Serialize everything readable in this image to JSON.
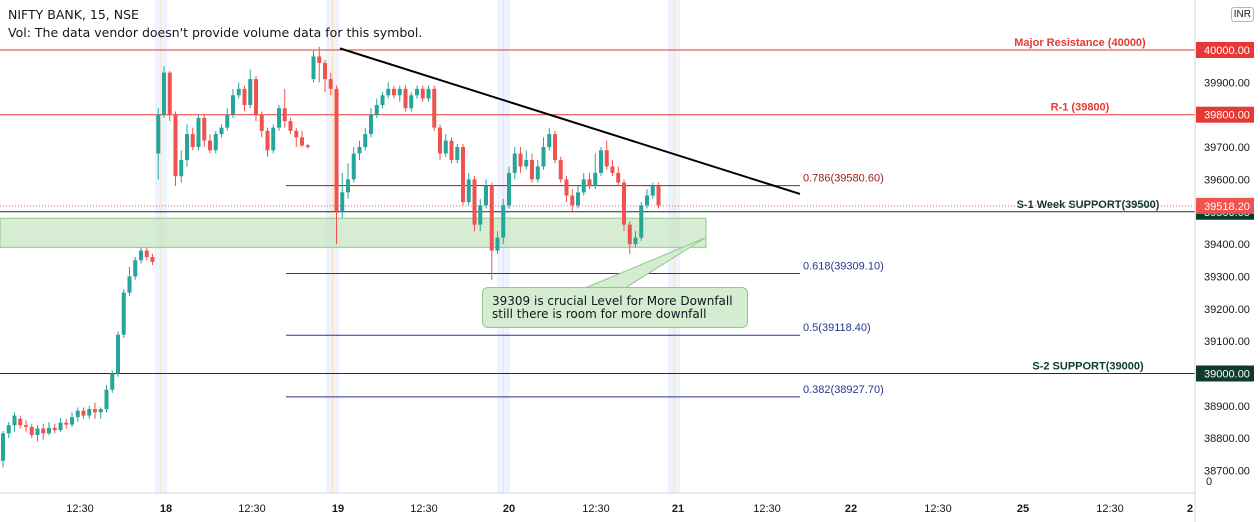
{
  "header": {
    "symbol_line": "NIFTY BANK, 15, NSE",
    "volume_line": "Vol: The data vendor doesn't provide volume data for this symbol."
  },
  "currency": "INR",
  "annotation": {
    "line1": "39309 is crucial Level for More Downfall",
    "line2": "still there is room for more downfall"
  },
  "colors": {
    "up": "#26a69a",
    "down": "#ef5350",
    "resistance": "#e53935",
    "support": "#0d3b2e",
    "fib_red": "#9b1c1c",
    "fib_blue": "#283593",
    "trend": "#000000",
    "zone_fill": "#c8e6c4",
    "last_price": "#ef5350"
  },
  "chart_data": {
    "type": "candlestick",
    "ylim": [
      38700,
      40150
    ],
    "y_ticks": [
      "40000.00",
      "39900.00",
      "39800.00",
      "39700.00",
      "39600.00",
      "39500.00",
      "39400.00",
      "39300.00",
      "39200.00",
      "39100.00",
      "39000.00",
      "38900.00",
      "38800.00",
      "38700.00"
    ],
    "x_ticks": [
      {
        "label": "12:30",
        "x": 80,
        "bold": false
      },
      {
        "label": "18",
        "x": 166,
        "bold": true
      },
      {
        "label": "12:30",
        "x": 252,
        "bold": false
      },
      {
        "label": "19",
        "x": 338,
        "bold": true
      },
      {
        "label": "12:30",
        "x": 424,
        "bold": false
      },
      {
        "label": "20",
        "x": 509,
        "bold": true
      },
      {
        "label": "12:30",
        "x": 596,
        "bold": false
      },
      {
        "label": "21",
        "x": 678,
        "bold": true
      },
      {
        "label": "12:30",
        "x": 767,
        "bold": false
      },
      {
        "label": "22",
        "x": 851,
        "bold": true
      },
      {
        "label": "12:30",
        "x": 938,
        "bold": false
      },
      {
        "label": "25",
        "x": 1023,
        "bold": true
      },
      {
        "label": "12:30",
        "x": 1110,
        "bold": false
      },
      {
        "label": "2",
        "x": 1190,
        "bold": true
      }
    ],
    "levels": [
      {
        "label": "Major Resistance (40000)",
        "value": 40000,
        "tag": "40000.00",
        "kind": "resistance"
      },
      {
        "label": "R-1 (39800)",
        "value": 39800,
        "tag": "39800.00",
        "kind": "resistance"
      },
      {
        "label": "S-1 Week SUPPORT(39500)",
        "value": 39500,
        "tag": "39500.00",
        "kind": "support"
      },
      {
        "label": "S-2 SUPPORT(39000)",
        "value": 39000,
        "tag": "39000.00",
        "kind": "support"
      }
    ],
    "fibonacci": [
      {
        "label": "0.786(39580.60)",
        "value": 39580.6,
        "color": "fib_red"
      },
      {
        "label": "0.618(39309.10)",
        "value": 39309.1,
        "color": "fib_blue"
      },
      {
        "label": "0.5(39118.40)",
        "value": 39118.4,
        "color": "fib_blue"
      },
      {
        "label": "0.382(38927.70)",
        "value": 38927.7,
        "color": "fib_blue"
      }
    ],
    "last_price": {
      "value": 39518.2,
      "tag": "39518.20"
    },
    "support_zone": {
      "high": 39480,
      "low": 39390
    },
    "trendline": {
      "start": 40005,
      "end": 39555
    },
    "axis_bottom_label": "0",
    "candles": [
      [
        38730,
        38815,
        38710,
        38822
      ],
      [
        38815,
        38840,
        38800,
        38850
      ],
      [
        38840,
        38870,
        38820,
        38880
      ],
      [
        38860,
        38840,
        38830,
        38870
      ],
      [
        38840,
        38835,
        38820,
        38855
      ],
      [
        38835,
        38810,
        38800,
        38845
      ],
      [
        38810,
        38830,
        38790,
        38840
      ],
      [
        38830,
        38815,
        38795,
        38845
      ],
      [
        38815,
        38832,
        38810,
        38850
      ],
      [
        38832,
        38825,
        38815,
        38845
      ],
      [
        38825,
        38848,
        38820,
        38862
      ],
      [
        38848,
        38842,
        38830,
        38860
      ],
      [
        38842,
        38865,
        38835,
        38880
      ],
      [
        38865,
        38885,
        38850,
        38895
      ],
      [
        38885,
        38870,
        38860,
        38895
      ],
      [
        38870,
        38890,
        38860,
        38900
      ],
      [
        38890,
        38880,
        38860,
        38910
      ],
      [
        38880,
        38890,
        38860,
        38895
      ],
      [
        38890,
        38950,
        38880,
        38965
      ],
      [
        38950,
        39000,
        38940,
        39010
      ],
      [
        39000,
        39120,
        38990,
        39130
      ],
      [
        39120,
        39250,
        39110,
        39260
      ],
      [
        39250,
        39300,
        39240,
        39330
      ],
      [
        39300,
        39350,
        39290,
        39360
      ],
      [
        39350,
        39380,
        39340,
        39390
      ],
      [
        39380,
        39360,
        39350,
        39390
      ],
      [
        39360,
        39345,
        39335,
        39370
      ],
      [
        39680,
        39800,
        39600,
        39820
      ],
      [
        39800,
        39930,
        39790,
        39950
      ],
      [
        39930,
        39800,
        39780,
        39935
      ],
      [
        39800,
        39610,
        39580,
        39810
      ],
      [
        39610,
        39660,
        39590,
        39690
      ],
      [
        39660,
        39740,
        39640,
        39770
      ],
      [
        39740,
        39700,
        39690,
        39760
      ],
      [
        39700,
        39790,
        39690,
        39800
      ],
      [
        39790,
        39720,
        39700,
        39800
      ],
      [
        39720,
        39690,
        39680,
        39740
      ],
      [
        39690,
        39740,
        39680,
        39750
      ],
      [
        39740,
        39760,
        39730,
        39770
      ],
      [
        39760,
        39800,
        39750,
        39820
      ],
      [
        39800,
        39860,
        39790,
        39880
      ],
      [
        39860,
        39880,
        39850,
        39900
      ],
      [
        39880,
        39830,
        39810,
        39890
      ],
      [
        39830,
        39910,
        39820,
        39940
      ],
      [
        39910,
        39800,
        39780,
        39920
      ],
      [
        39800,
        39750,
        39730,
        39810
      ],
      [
        39750,
        39690,
        39670,
        39760
      ],
      [
        39690,
        39760,
        39680,
        39770
      ],
      [
        39760,
        39820,
        39750,
        39830
      ],
      [
        39820,
        39780,
        39760,
        39880
      ],
      [
        39780,
        39750,
        39740,
        39790
      ],
      [
        39750,
        39730,
        39700,
        39760
      ],
      [
        39730,
        39705,
        39700,
        39750
      ],
      [
        39705,
        39700,
        39695,
        39710
      ],
      [
        39910,
        39980,
        39900,
        40000
      ],
      [
        39980,
        39960,
        39900,
        40010
      ],
      [
        39960,
        39910,
        39870,
        39970
      ],
      [
        39910,
        39880,
        39860,
        39930
      ],
      [
        39880,
        39500,
        39400,
        39890
      ],
      [
        39500,
        39560,
        39480,
        39620
      ],
      [
        39560,
        39600,
        39540,
        39650
      ],
      [
        39600,
        39680,
        39590,
        39700
      ],
      [
        39680,
        39700,
        39660,
        39720
      ],
      [
        39700,
        39740,
        39690,
        39760
      ],
      [
        39740,
        39800,
        39730,
        39820
      ],
      [
        39800,
        39830,
        39790,
        39850
      ],
      [
        39830,
        39860,
        39820,
        39870
      ],
      [
        39860,
        39880,
        39850,
        39900
      ],
      [
        39880,
        39860,
        39850,
        39890
      ],
      [
        39860,
        39880,
        39840,
        39890
      ],
      [
        39880,
        39820,
        39810,
        39890
      ],
      [
        39820,
        39860,
        39810,
        39870
      ],
      [
        39860,
        39880,
        39850,
        39890
      ],
      [
        39880,
        39850,
        39840,
        39890
      ],
      [
        39850,
        39880,
        39840,
        39890
      ],
      [
        39880,
        39760,
        39750,
        39890
      ],
      [
        39760,
        39680,
        39660,
        39770
      ],
      [
        39680,
        39720,
        39670,
        39740
      ],
      [
        39720,
        39660,
        39650,
        39730
      ],
      [
        39660,
        39700,
        39650,
        39710
      ],
      [
        39700,
        39530,
        39520,
        39710
      ],
      [
        39530,
        39600,
        39520,
        39620
      ],
      [
        39600,
        39460,
        39440,
        39610
      ],
      [
        39460,
        39520,
        39440,
        39540
      ],
      [
        39520,
        39580,
        39510,
        39600
      ],
      [
        39580,
        39380,
        39290,
        39590
      ],
      [
        39380,
        39420,
        39370,
        39440
      ],
      [
        39420,
        39520,
        39400,
        39540
      ],
      [
        39520,
        39620,
        39510,
        39640
      ],
      [
        39620,
        39680,
        39600,
        39700
      ],
      [
        39680,
        39640,
        39620,
        39700
      ],
      [
        39640,
        39660,
        39630,
        39690
      ],
      [
        39660,
        39600,
        39590,
        39680
      ],
      [
        39600,
        39640,
        39590,
        39660
      ],
      [
        39640,
        39700,
        39630,
        39730
      ],
      [
        39700,
        39740,
        39690,
        39760
      ],
      [
        39740,
        39660,
        39650,
        39750
      ],
      [
        39660,
        39600,
        39590,
        39670
      ],
      [
        39600,
        39550,
        39530,
        39610
      ],
      [
        39550,
        39520,
        39500,
        39570
      ],
      [
        39520,
        39560,
        39510,
        39580
      ],
      [
        39560,
        39600,
        39550,
        39620
      ],
      [
        39600,
        39580,
        39570,
        39620
      ],
      [
        39580,
        39620,
        39570,
        39680
      ],
      [
        39620,
        39690,
        39610,
        39700
      ],
      [
        39690,
        39640,
        39630,
        39720
      ],
      [
        39640,
        39620,
        39610,
        39660
      ],
      [
        39620,
        39590,
        39580,
        39640
      ],
      [
        39590,
        39460,
        39440,
        39600
      ],
      [
        39460,
        39400,
        39370,
        39470
      ],
      [
        39400,
        39420,
        39390,
        39440
      ],
      [
        39420,
        39520,
        39410,
        39530
      ],
      [
        39520,
        39550,
        39510,
        39570
      ],
      [
        39550,
        39580,
        39540,
        39590
      ],
      [
        39580,
        39520,
        39510,
        39590
      ]
    ]
  }
}
